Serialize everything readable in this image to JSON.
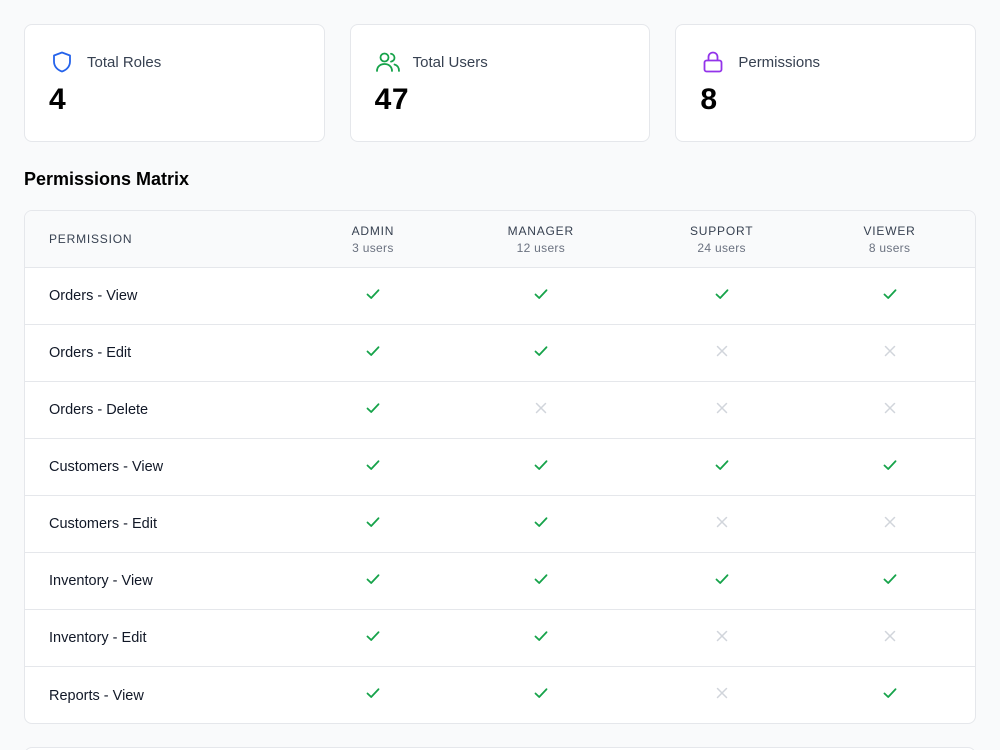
{
  "stats": [
    {
      "label": "Total Roles",
      "value": "4",
      "icon": "shield-icon",
      "color": "#2563eb"
    },
    {
      "label": "Total Users",
      "value": "47",
      "icon": "users-icon",
      "color": "#16a34a"
    },
    {
      "label": "Permissions",
      "value": "8",
      "icon": "lock-icon",
      "color": "#9333ea"
    }
  ],
  "matrix": {
    "title": "Permissions Matrix",
    "header_label": "PERMISSION",
    "roles": [
      {
        "name": "ADMIN",
        "count": "3 users"
      },
      {
        "name": "MANAGER",
        "count": "12 users"
      },
      {
        "name": "SUPPORT",
        "count": "24 users"
      },
      {
        "name": "VIEWER",
        "count": "8 users"
      }
    ],
    "rows": [
      {
        "permission": "Orders - View",
        "grants": [
          true,
          true,
          true,
          true
        ]
      },
      {
        "permission": "Orders - Edit",
        "grants": [
          true,
          true,
          false,
          false
        ]
      },
      {
        "permission": "Orders - Delete",
        "grants": [
          true,
          false,
          false,
          false
        ]
      },
      {
        "permission": "Customers - View",
        "grants": [
          true,
          true,
          true,
          true
        ]
      },
      {
        "permission": "Customers - Edit",
        "grants": [
          true,
          true,
          false,
          false
        ]
      },
      {
        "permission": "Inventory - View",
        "grants": [
          true,
          true,
          true,
          true
        ]
      },
      {
        "permission": "Inventory - Edit",
        "grants": [
          true,
          true,
          false,
          false
        ]
      },
      {
        "permission": "Reports - View",
        "grants": [
          true,
          true,
          false,
          true
        ]
      }
    ],
    "colors": {
      "granted": "#16a34a",
      "denied": "#d1d5db"
    },
    "icons": {
      "granted": "check-icon",
      "denied": "x-icon"
    }
  }
}
